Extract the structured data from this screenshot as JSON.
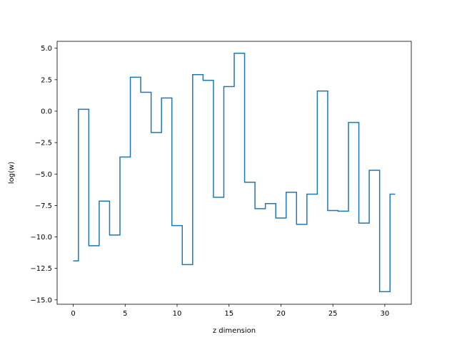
{
  "chart_data": {
    "type": "line",
    "drawstyle": "steps-mid",
    "xlabel": "z dimension",
    "ylabel": "log(w)",
    "xlim": [
      -1.55,
      32.55
    ],
    "ylim": [
      -15.35,
      5.55
    ],
    "xticks": [
      0,
      5,
      10,
      15,
      20,
      25,
      30
    ],
    "xtick_labels": [
      "0",
      "5",
      "10",
      "15",
      "20",
      "25",
      "30"
    ],
    "yticks": [
      -15.0,
      -12.5,
      -10.0,
      -7.5,
      -5.0,
      -2.5,
      0.0,
      2.5,
      5.0
    ],
    "ytick_labels": [
      "−15.0",
      "−12.5",
      "−10.0",
      "−7.5",
      "−5.0",
      "−2.5",
      "0.0",
      "2.5",
      "5.0"
    ],
    "grid": false,
    "line_color": "#1f77b4",
    "series": [
      {
        "x": [
          0,
          1,
          2,
          3,
          4,
          5,
          6,
          7,
          8,
          9,
          10,
          11,
          12,
          13,
          14,
          15,
          16,
          17,
          18,
          19,
          20,
          21,
          22,
          23,
          24,
          25,
          26,
          27,
          28,
          29,
          30,
          31
        ],
        "values": [
          -11.9,
          0.15,
          -10.7,
          -7.15,
          -9.85,
          -3.65,
          2.7,
          1.5,
          -1.7,
          1.05,
          -9.1,
          -12.2,
          2.9,
          2.45,
          -6.85,
          1.95,
          4.6,
          -5.65,
          -7.75,
          -7.35,
          -8.5,
          -6.45,
          -9.0,
          -6.6,
          1.6,
          -7.9,
          -7.95,
          -0.9,
          -8.9,
          -4.7,
          -14.35,
          -6.6
        ]
      }
    ]
  }
}
